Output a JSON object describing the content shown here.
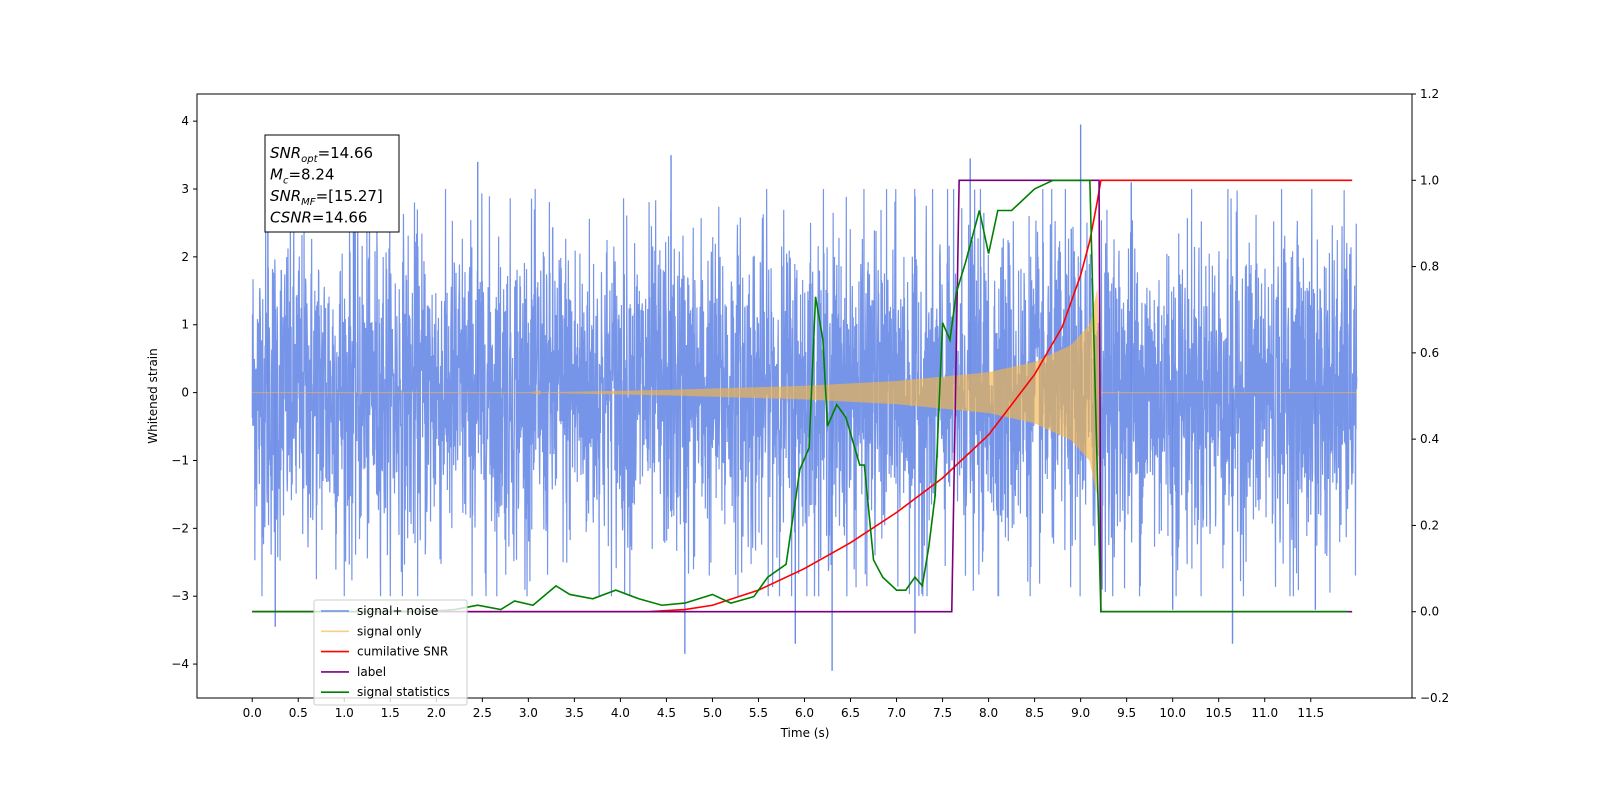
{
  "chart_data": {
    "type": "line",
    "title": "",
    "xlabel": "Time (s)",
    "ylabel": "Whitened strain",
    "y2label": "",
    "xlim": [
      -0.6,
      12.6
    ],
    "ylim": [
      -4.5,
      4.4
    ],
    "y2lim": [
      -0.2,
      1.2
    ],
    "xticks": [
      "0.0",
      "0.5",
      "1.0",
      "1.5",
      "2.0",
      "2.5",
      "3.0",
      "3.5",
      "4.0",
      "4.5",
      "5.0",
      "5.5",
      "6.0",
      "6.5",
      "7.0",
      "7.5",
      "8.0",
      "8.5",
      "9.0",
      "9.5",
      "10.0",
      "10.5",
      "11.0",
      "11.5"
    ],
    "yticks": [
      "−4",
      "−3",
      "−2",
      "−1",
      "0",
      "1",
      "2",
      "3",
      "4"
    ],
    "y2ticks": [
      "−0.2",
      "0.0",
      "0.2",
      "0.4",
      "0.6",
      "0.8",
      "1.0",
      "1.2"
    ],
    "grid": false,
    "legend_position": "lower-left",
    "annotation": {
      "lines": [
        {
          "name": "SNR",
          "sub": "opt",
          "value": "=14.66"
        },
        {
          "name": "M",
          "sub": "c",
          "value": "=8.24"
        },
        {
          "name": "SNR",
          "sub": "MF",
          "value": "=[15.27]"
        },
        {
          "name": "CSNR",
          "sub": "",
          "value": "=14.66"
        }
      ]
    },
    "series": [
      {
        "name": "signal+ noise",
        "axis": "left",
        "color": "#6b8ce6",
        "style": "noise",
        "x_range": [
          0.0,
          12.0
        ],
        "typical_amplitude": 1.6,
        "peaks": [
          {
            "x": 0.17,
            "y": 2.9
          },
          {
            "x": 0.25,
            "y": -3.45
          },
          {
            "x": 1.1,
            "y": 2.85
          },
          {
            "x": 2.45,
            "y": 3.4
          },
          {
            "x": 4.55,
            "y": 3.5
          },
          {
            "x": 4.7,
            "y": -3.85
          },
          {
            "x": 5.9,
            "y": -3.7
          },
          {
            "x": 6.3,
            "y": -4.1
          },
          {
            "x": 7.2,
            "y": -3.55
          },
          {
            "x": 7.8,
            "y": 3.45
          },
          {
            "x": 9.0,
            "y": 3.95
          },
          {
            "x": 9.55,
            "y": 3.1
          },
          {
            "x": 10.0,
            "y": -3.2
          },
          {
            "x": 10.65,
            "y": -3.7
          },
          {
            "x": 11.55,
            "y": -3.2
          }
        ]
      },
      {
        "name": "signal only",
        "axis": "left",
        "color": "#f5b54a",
        "style": "chirp",
        "x_range": [
          0.0,
          12.0
        ],
        "envelope": [
          {
            "x": 0.0,
            "y": 0.0
          },
          {
            "x": 3.0,
            "y": 0.0
          },
          {
            "x": 4.5,
            "y": 0.04
          },
          {
            "x": 6.0,
            "y": 0.1
          },
          {
            "x": 7.0,
            "y": 0.17
          },
          {
            "x": 8.0,
            "y": 0.3
          },
          {
            "x": 8.5,
            "y": 0.45
          },
          {
            "x": 8.9,
            "y": 0.7
          },
          {
            "x": 9.1,
            "y": 1.0
          },
          {
            "x": 9.18,
            "y": 1.5
          },
          {
            "x": 9.22,
            "y": 0.0
          },
          {
            "x": 12.0,
            "y": 0.0
          }
        ]
      },
      {
        "name": "cumilative SNR",
        "axis": "right",
        "color": "#ff0000",
        "points": [
          {
            "x": 0.0,
            "y": 0.0
          },
          {
            "x": 4.3,
            "y": 0.0
          },
          {
            "x": 4.7,
            "y": 0.005
          },
          {
            "x": 5.0,
            "y": 0.015
          },
          {
            "x": 5.5,
            "y": 0.05
          },
          {
            "x": 6.0,
            "y": 0.1
          },
          {
            "x": 6.5,
            "y": 0.16
          },
          {
            "x": 7.0,
            "y": 0.23
          },
          {
            "x": 7.5,
            "y": 0.31
          },
          {
            "x": 8.0,
            "y": 0.41
          },
          {
            "x": 8.5,
            "y": 0.55
          },
          {
            "x": 8.8,
            "y": 0.66
          },
          {
            "x": 9.0,
            "y": 0.78
          },
          {
            "x": 9.1,
            "y": 0.86
          },
          {
            "x": 9.18,
            "y": 0.95
          },
          {
            "x": 9.22,
            "y": 1.0
          },
          {
            "x": 11.95,
            "y": 1.0
          }
        ]
      },
      {
        "name": "label",
        "axis": "right",
        "color": "#7b0080",
        "points": [
          {
            "x": 0.0,
            "y": 0.0
          },
          {
            "x": 7.6,
            "y": 0.0
          },
          {
            "x": 7.68,
            "y": 1.0
          },
          {
            "x": 9.2,
            "y": 1.0
          },
          {
            "x": 9.22,
            "y": 0.0
          },
          {
            "x": 11.95,
            "y": 0.0
          }
        ]
      },
      {
        "name": "signal statistics",
        "axis": "right",
        "color": "#008000",
        "points": [
          {
            "x": 0.0,
            "y": 0.0
          },
          {
            "x": 1.5,
            "y": 0.0
          },
          {
            "x": 2.0,
            "y": 0.002
          },
          {
            "x": 2.2,
            "y": 0.005
          },
          {
            "x": 2.45,
            "y": 0.015
          },
          {
            "x": 2.7,
            "y": 0.005
          },
          {
            "x": 2.85,
            "y": 0.025
          },
          {
            "x": 3.05,
            "y": 0.015
          },
          {
            "x": 3.3,
            "y": 0.06
          },
          {
            "x": 3.45,
            "y": 0.04
          },
          {
            "x": 3.7,
            "y": 0.03
          },
          {
            "x": 3.95,
            "y": 0.05
          },
          {
            "x": 4.2,
            "y": 0.03
          },
          {
            "x": 4.45,
            "y": 0.015
          },
          {
            "x": 4.7,
            "y": 0.02
          },
          {
            "x": 5.0,
            "y": 0.04
          },
          {
            "x": 5.2,
            "y": 0.02
          },
          {
            "x": 5.45,
            "y": 0.035
          },
          {
            "x": 5.6,
            "y": 0.08
          },
          {
            "x": 5.8,
            "y": 0.11
          },
          {
            "x": 5.95,
            "y": 0.33
          },
          {
            "x": 6.05,
            "y": 0.38
          },
          {
            "x": 6.12,
            "y": 0.73
          },
          {
            "x": 6.2,
            "y": 0.63
          },
          {
            "x": 6.25,
            "y": 0.43
          },
          {
            "x": 6.35,
            "y": 0.48
          },
          {
            "x": 6.45,
            "y": 0.45
          },
          {
            "x": 6.6,
            "y": 0.34
          },
          {
            "x": 6.65,
            "y": 0.34
          },
          {
            "x": 6.75,
            "y": 0.12
          },
          {
            "x": 6.85,
            "y": 0.08
          },
          {
            "x": 7.0,
            "y": 0.05
          },
          {
            "x": 7.1,
            "y": 0.05
          },
          {
            "x": 7.2,
            "y": 0.08
          },
          {
            "x": 7.28,
            "y": 0.06
          },
          {
            "x": 7.35,
            "y": 0.15
          },
          {
            "x": 7.42,
            "y": 0.27
          },
          {
            "x": 7.5,
            "y": 0.67
          },
          {
            "x": 7.58,
            "y": 0.63
          },
          {
            "x": 7.65,
            "y": 0.74
          },
          {
            "x": 7.75,
            "y": 0.81
          },
          {
            "x": 7.8,
            "y": 0.85
          },
          {
            "x": 7.9,
            "y": 0.93
          },
          {
            "x": 8.0,
            "y": 0.83
          },
          {
            "x": 8.1,
            "y": 0.93
          },
          {
            "x": 8.25,
            "y": 0.93
          },
          {
            "x": 8.5,
            "y": 0.98
          },
          {
            "x": 8.7,
            "y": 1.0
          },
          {
            "x": 9.1,
            "y": 1.0
          },
          {
            "x": 9.22,
            "y": 0.0
          },
          {
            "x": 11.9,
            "y": 0.0
          }
        ]
      }
    ]
  }
}
